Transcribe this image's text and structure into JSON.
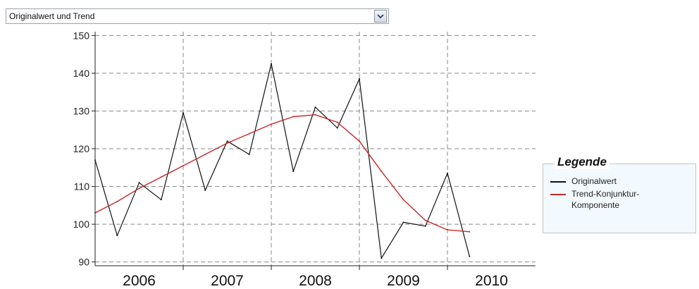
{
  "selector": {
    "selected": "Originalwert und Trend",
    "icon": "chevron-down-icon"
  },
  "legend": {
    "title": "Legende",
    "items": [
      {
        "label": "Originalwert",
        "color": "#111111"
      },
      {
        "label": "Trend-Konjunktur-Komponente",
        "color": "#c62828"
      }
    ]
  },
  "chart_data": {
    "type": "line",
    "x_unit": "year",
    "xlim": [
      2005.5,
      2010.5
    ],
    "ylim": [
      89,
      151
    ],
    "y_ticks": [
      90,
      100,
      110,
      120,
      130,
      140,
      150
    ],
    "x_ticks": [
      {
        "label": "2006",
        "value": 2006
      },
      {
        "label": "2007",
        "value": 2007
      },
      {
        "label": "2008",
        "value": 2008
      },
      {
        "label": "2009",
        "value": 2009
      },
      {
        "label": "2010",
        "value": 2010
      }
    ],
    "year_boundaries": [
      2006.5,
      2007.5,
      2008.5,
      2009.5
    ],
    "grid": true,
    "legend_position": "right",
    "series": [
      {
        "name": "Originalwert",
        "color": "#111111",
        "x": [
          2005.5,
          2005.75,
          2006.0,
          2006.25,
          2006.5,
          2006.75,
          2007.0,
          2007.25,
          2007.5,
          2007.75,
          2008.0,
          2008.25,
          2008.5,
          2008.75,
          2009.0,
          2009.25,
          2009.5,
          2009.75
        ],
        "y": [
          117,
          97,
          111,
          106.5,
          129.5,
          109,
          122,
          118.5,
          142.5,
          114,
          131,
          125.5,
          138.5,
          91,
          100.5,
          99.5,
          113.5,
          91.5
        ]
      },
      {
        "name": "Trend-Konjunktur-Komponente",
        "color": "#c62828",
        "x": [
          2005.5,
          2005.75,
          2006.0,
          2006.25,
          2006.5,
          2006.75,
          2007.0,
          2007.25,
          2007.5,
          2007.75,
          2008.0,
          2008.25,
          2008.5,
          2008.75,
          2009.0,
          2009.25,
          2009.5,
          2009.75
        ],
        "y": [
          103,
          106,
          109.5,
          112.5,
          115.5,
          118.5,
          121.5,
          124,
          126.5,
          128.5,
          129,
          127,
          122,
          114,
          106.5,
          101,
          98.5,
          98
        ]
      }
    ]
  }
}
